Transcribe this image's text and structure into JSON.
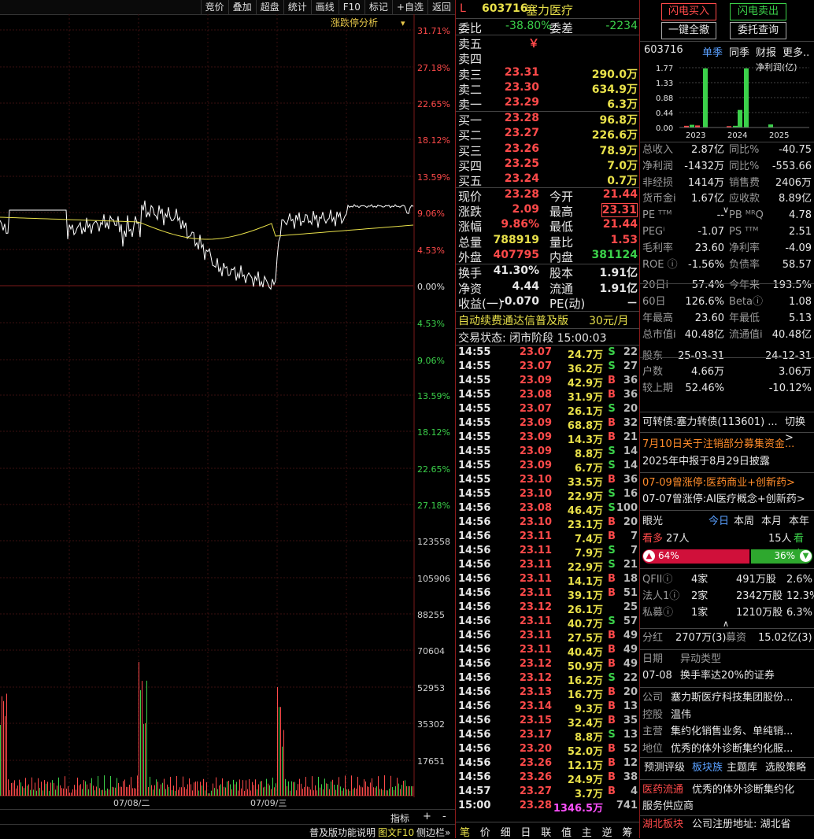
{
  "toolbar": [
    "竞价",
    "叠加",
    "超盘",
    "统计",
    "画线",
    "F10",
    "标记",
    "+自选",
    "返回"
  ],
  "chart": {
    "analysis_label": "涨跌停分析",
    "pct_labels": [
      "31.71%",
      "27.18%",
      "22.65%",
      "18.12%",
      "13.59%",
      "9.06%",
      "4.53%",
      "0.00%",
      "4.53%",
      "9.06%",
      "13.59%",
      "18.12%",
      "22.65%",
      "27.18%"
    ],
    "vol_labels": [
      "123558",
      "105906",
      "88255",
      "70604",
      "52953",
      "35302",
      "17651"
    ],
    "date_labels": [
      "07/08/二",
      "07/09/三"
    ],
    "bottom_buttons": [
      "指标",
      "+",
      "-"
    ],
    "footer_text": "普及版功能说明",
    "footer_links": [
      "图文F10",
      "侧边栏»"
    ]
  },
  "stock": {
    "flag": "L",
    "code": "603716",
    "name": "塞力医疗"
  },
  "commission": {
    "ratio_label": "委比",
    "ratio": "-38.80%",
    "diff_label": "委差",
    "diff": "-2234"
  },
  "asks": [
    {
      "label": "卖五",
      "price": "￥",
      "vol": ""
    },
    {
      "label": "卖四",
      "price": "",
      "vol": ""
    },
    {
      "label": "卖三",
      "price": "23.31",
      "vol": "290.0万"
    },
    {
      "label": "卖二",
      "price": "23.30",
      "vol": "634.9万"
    },
    {
      "label": "卖一",
      "price": "23.29",
      "vol": "6.3万"
    }
  ],
  "bids": [
    {
      "label": "买一",
      "price": "23.28",
      "vol": "96.8万"
    },
    {
      "label": "买二",
      "price": "23.27",
      "vol": "226.6万"
    },
    {
      "label": "买三",
      "price": "23.26",
      "vol": "78.9万"
    },
    {
      "label": "买四",
      "price": "23.25",
      "vol": "7.0万"
    },
    {
      "label": "买五",
      "price": "23.24",
      "vol": "0.7万"
    }
  ],
  "stats": [
    {
      "l1": "现价",
      "v1": "23.28",
      "c1": "red",
      "l2": "今开",
      "v2": "21.44",
      "c2": "red"
    },
    {
      "l1": "涨跌",
      "v1": "2.09",
      "c1": "red",
      "l2": "最高",
      "v2": "23.31",
      "c2": "red"
    },
    {
      "l1": "涨幅",
      "v1": "9.86%",
      "c1": "red",
      "l2": "最低",
      "v2": "21.44",
      "c2": "red"
    },
    {
      "l1": "总量",
      "v1": "788919",
      "c1": "yellow",
      "l2": "量比",
      "v2": "1.53",
      "c2": "red"
    },
    {
      "l1": "外盘",
      "v1": "407795",
      "c1": "red",
      "l2": "内盘",
      "v2": "381124",
      "c2": "green"
    },
    {
      "l1": "换手",
      "v1": "41.30%",
      "c1": "white",
      "l2": "股本",
      "v2": "1.91亿",
      "c2": "white"
    },
    {
      "l1": "净资",
      "v1": "4.44",
      "c1": "white",
      "l2": "流通",
      "v2": "1.91亿",
      "c2": "white"
    },
    {
      "l1": "收益(一)",
      "v1": "-0.070",
      "c1": "white",
      "l2": "PE(动)",
      "v2": "－",
      "c2": "white"
    }
  ],
  "promo": {
    "text": "自动续费通达信普及版",
    "price": "30元/月"
  },
  "trade_status": "交易状态: 闭市阶段 15:00:03",
  "ticks": [
    [
      "14:55",
      "23.07",
      "24.7万",
      "S",
      "22"
    ],
    [
      "14:55",
      "23.07",
      "36.2万",
      "S",
      "27"
    ],
    [
      "14:55",
      "23.09",
      "42.9万",
      "B",
      "36"
    ],
    [
      "14:55",
      "23.08",
      "31.9万",
      "B",
      "36"
    ],
    [
      "14:55",
      "23.07",
      "26.1万",
      "S",
      "20"
    ],
    [
      "14:55",
      "23.09",
      "68.8万",
      "B",
      "32"
    ],
    [
      "14:55",
      "23.09",
      "14.3万",
      "B",
      "21"
    ],
    [
      "14:55",
      "23.09",
      "8.8万",
      "S",
      "14"
    ],
    [
      "14:55",
      "23.09",
      "6.7万",
      "S",
      "14"
    ],
    [
      "14:55",
      "23.10",
      "33.5万",
      "B",
      "36"
    ],
    [
      "14:55",
      "23.10",
      "22.9万",
      "S",
      "16"
    ],
    [
      "14:56",
      "23.08",
      "46.4万",
      "S",
      "100"
    ],
    [
      "14:56",
      "23.10",
      "23.1万",
      "B",
      "20"
    ],
    [
      "14:56",
      "23.11",
      "7.4万",
      "B",
      "7"
    ],
    [
      "14:56",
      "23.11",
      "7.9万",
      "S",
      "7"
    ],
    [
      "14:56",
      "23.11",
      "22.9万",
      "S",
      "21"
    ],
    [
      "14:56",
      "23.11",
      "14.1万",
      "B",
      "18"
    ],
    [
      "14:56",
      "23.11",
      "39.1万",
      "B",
      "51"
    ],
    [
      "14:56",
      "23.12",
      "26.1万",
      "",
      "25"
    ],
    [
      "14:56",
      "23.11",
      "40.7万",
      "S",
      "57"
    ],
    [
      "14:56",
      "23.11",
      "27.5万",
      "B",
      "49"
    ],
    [
      "14:56",
      "23.11",
      "40.4万",
      "B",
      "49"
    ],
    [
      "14:56",
      "23.12",
      "50.9万",
      "B",
      "49"
    ],
    [
      "14:56",
      "23.12",
      "16.2万",
      "S",
      "22"
    ],
    [
      "14:56",
      "23.13",
      "16.7万",
      "B",
      "20"
    ],
    [
      "14:56",
      "23.14",
      "9.3万",
      "B",
      "13"
    ],
    [
      "14:56",
      "23.15",
      "32.4万",
      "B",
      "35"
    ],
    [
      "14:56",
      "23.17",
      "8.8万",
      "S",
      "13"
    ],
    [
      "14:56",
      "23.20",
      "52.0万",
      "B",
      "52"
    ],
    [
      "14:56",
      "23.26",
      "12.1万",
      "B",
      "12"
    ],
    [
      "14:56",
      "23.26",
      "24.9万",
      "B",
      "38"
    ],
    [
      "14:57",
      "23.27",
      "3.7万",
      "B",
      "4"
    ],
    [
      "15:00",
      "23.28",
      "1346.5万",
      "",
      "741"
    ]
  ],
  "bottom_tabs": [
    "笔",
    "价",
    "细",
    "日",
    "联",
    "值",
    "主",
    "逆",
    "筹"
  ],
  "right": {
    "buttons": [
      "闪电买入",
      "闪电卖出",
      "一键全撤",
      "委托查询"
    ],
    "code": "603716",
    "tabs": [
      "单季",
      "同季",
      "财报",
      "更多.."
    ],
    "bar_title": "净利润(亿)",
    "bar_ylabels": [
      "1.77",
      "1.33",
      "0.88",
      "0.44",
      "0.00"
    ],
    "bar_years": [
      "2023",
      "2024",
      "2025"
    ],
    "fin": [
      [
        "总收入",
        "2.87亿",
        "同比%",
        "-40.75"
      ],
      [
        "净利润",
        "-1432万",
        "同比%",
        "-553.66"
      ],
      [
        "非经损",
        "1414万",
        "销售费",
        "2406万"
      ],
      [
        "货币金i",
        "1.67亿",
        "应收款",
        "8.89亿"
      ],
      [
        "PE ᵀᵀᴹ",
        "--",
        "PB ᴹᴿQ",
        "4.78"
      ],
      [
        "PEGⁱ",
        "-1.07",
        "PS ᵀᵀᴹ",
        "2.51"
      ],
      [
        "毛利率",
        "23.60",
        "净利率",
        "-4.09"
      ],
      [
        "ROE ⓘ",
        "-1.56%",
        "负债率",
        "58.57"
      ],
      [
        "20日i",
        "57.4%",
        "今年来",
        "193.5%"
      ],
      [
        "60日",
        "126.6%",
        "Betaⓘ",
        "1.08"
      ],
      [
        "年最高",
        "23.60",
        "年最低",
        "5.13"
      ],
      [
        "总市值i",
        "40.48亿",
        "流通值i",
        "40.48亿"
      ],
      [
        "股东",
        "25-03-31",
        "",
        "24-12-31"
      ],
      [
        "户数",
        "4.66万",
        "",
        "3.06万"
      ],
      [
        "较上期",
        "52.46%",
        "",
        "-10.12%"
      ]
    ],
    "convertible": "可转债:塞力转债(113601) ...",
    "convertible_link": "切换>",
    "notice1": "7月10日关于注销部分募集资金...",
    "notice2": "2025年中报于8月29日披露",
    "limit1": "07-09曾涨停:医药商业+创新药>",
    "limit2": "07-07曾涨停:AI医疗概念+创新药>",
    "eye_label": "眼光",
    "eye_tabs": [
      "今日",
      "本周",
      "本月",
      "本年"
    ],
    "bull_label": "看多",
    "bull_count": "27人",
    "bear_count": "15人",
    "bear_label": "看空",
    "bull_pct": 64,
    "bull_pct_text": "64%",
    "bear_pct_text": "36%",
    "holders": [
      [
        "QFIIⓘ",
        "4家",
        "491万股",
        "2.6%"
      ],
      [
        "法人1ⓘ",
        "2家",
        "2342万股",
        "12.3%"
      ],
      [
        "私募ⓘ",
        "1家",
        "1210万股",
        "6.3%"
      ]
    ],
    "dividend": [
      "分红",
      "2707万(3)",
      "募资",
      "15.02亿(3)"
    ],
    "event_head": [
      "日期",
      "异动类型"
    ],
    "event_row": [
      "07-08",
      "换手率达20%的证券"
    ],
    "company": [
      [
        "公司",
        "塞力斯医疗科技集团股份..."
      ],
      [
        "控股",
        "温伟"
      ],
      [
        "主营",
        "集约化销售业务、单纯销..."
      ],
      [
        "地位",
        "优秀的体外诊断集约化服..."
      ]
    ],
    "links": [
      "预测评级",
      "板块族",
      "主题库",
      "选股策略"
    ],
    "flow_tag": "医药流通",
    "flow_text": "优秀的体外诊断集约化",
    "flow_text2": "服务供应商",
    "region_tag": "湖北板块",
    "region_text": "公司注册地址: 湖北省"
  }
}
